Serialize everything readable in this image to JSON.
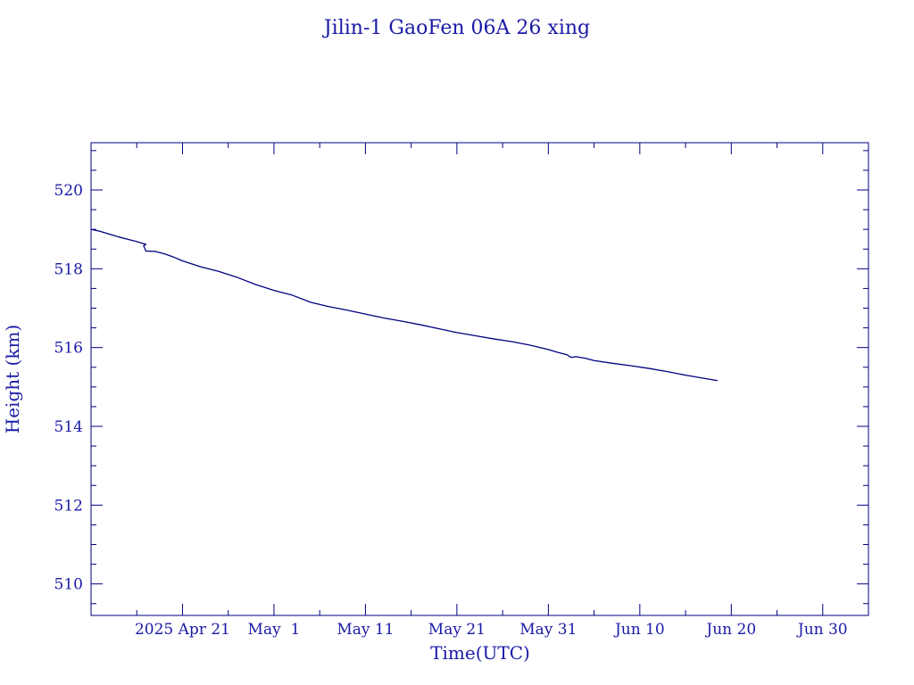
{
  "chart_data": {
    "type": "line",
    "title": "Jilin-1 GaoFen 06A 26 xing",
    "xlabel": "Time(UTC)",
    "ylabel": "Height (km)",
    "xlim": [
      "2025-04-11",
      "2025-07-05"
    ],
    "ylim": [
      509.2,
      521.2
    ],
    "x_tick_labels": [
      {
        "date": "2025-04-21",
        "label": "2025 Apr 21"
      },
      {
        "date": "2025-05-01",
        "label": "May  1"
      },
      {
        "date": "2025-05-11",
        "label": "May 11"
      },
      {
        "date": "2025-05-21",
        "label": "May 21"
      },
      {
        "date": "2025-05-31",
        "label": "May 31"
      },
      {
        "date": "2025-06-10",
        "label": "Jun 10"
      },
      {
        "date": "2025-06-20",
        "label": "Jun 20"
      },
      {
        "date": "2025-06-30",
        "label": "Jun 30"
      }
    ],
    "x_minor_step_days": 5,
    "y_ticks": [
      510,
      512,
      514,
      516,
      518,
      520
    ],
    "y_minor_step": 0.5,
    "grid": false,
    "legend": "none",
    "series": [
      {
        "color": "#000080",
        "points": [
          {
            "x": "2025-04-11",
            "y": 519.0
          },
          {
            "x": "2025-04-12",
            "y": 518.95
          },
          {
            "x": "2025-04-13",
            "y": 518.88
          },
          {
            "x": "2025-04-14",
            "y": 518.81
          },
          {
            "x": "2025-04-15",
            "y": 518.75
          },
          {
            "x": "2025-04-16",
            "y": 518.69
          },
          {
            "x": "2025-04-17",
            "y": 518.62
          },
          {
            "x": "2025-04-16 18:00",
            "y": 518.58
          },
          {
            "x": "2025-04-17",
            "y": 518.45
          },
          {
            "x": "2025-04-18",
            "y": 518.44
          },
          {
            "x": "2025-04-19",
            "y": 518.38
          },
          {
            "x": "2025-04-20",
            "y": 518.3
          },
          {
            "x": "2025-04-21",
            "y": 518.2
          },
          {
            "x": "2025-04-23",
            "y": 518.05
          },
          {
            "x": "2025-04-25",
            "y": 517.93
          },
          {
            "x": "2025-04-27",
            "y": 517.78
          },
          {
            "x": "2025-04-29",
            "y": 517.6
          },
          {
            "x": "2025-05-01",
            "y": 517.45
          },
          {
            "x": "2025-05-03",
            "y": 517.33
          },
          {
            "x": "2025-05-05",
            "y": 517.15
          },
          {
            "x": "2025-05-07",
            "y": 517.04
          },
          {
            "x": "2025-05-09",
            "y": 516.95
          },
          {
            "x": "2025-05-11",
            "y": 516.85
          },
          {
            "x": "2025-05-13",
            "y": 516.75
          },
          {
            "x": "2025-05-15",
            "y": 516.67
          },
          {
            "x": "2025-05-17",
            "y": 516.58
          },
          {
            "x": "2025-05-19",
            "y": 516.48
          },
          {
            "x": "2025-05-21",
            "y": 516.38
          },
          {
            "x": "2025-05-23",
            "y": 516.3
          },
          {
            "x": "2025-05-25",
            "y": 516.22
          },
          {
            "x": "2025-05-27",
            "y": 516.15
          },
          {
            "x": "2025-05-29",
            "y": 516.06
          },
          {
            "x": "2025-05-31",
            "y": 515.95
          },
          {
            "x": "2025-06-01",
            "y": 515.88
          },
          {
            "x": "2025-06-02",
            "y": 515.82
          },
          {
            "x": "2025-06-02 12:00",
            "y": 515.75
          },
          {
            "x": "2025-06-03",
            "y": 515.77
          },
          {
            "x": "2025-06-04",
            "y": 515.73
          },
          {
            "x": "2025-06-05",
            "y": 515.67
          },
          {
            "x": "2025-06-07",
            "y": 515.6
          },
          {
            "x": "2025-06-09",
            "y": 515.54
          },
          {
            "x": "2025-06-11",
            "y": 515.47
          },
          {
            "x": "2025-06-13",
            "y": 515.39
          },
          {
            "x": "2025-06-15",
            "y": 515.3
          },
          {
            "x": "2025-06-16",
            "y": 515.26
          },
          {
            "x": "2025-06-17",
            "y": 515.22
          },
          {
            "x": "2025-06-18",
            "y": 515.18
          },
          {
            "x": "2025-06-18 12:00",
            "y": 515.16
          }
        ]
      }
    ]
  }
}
